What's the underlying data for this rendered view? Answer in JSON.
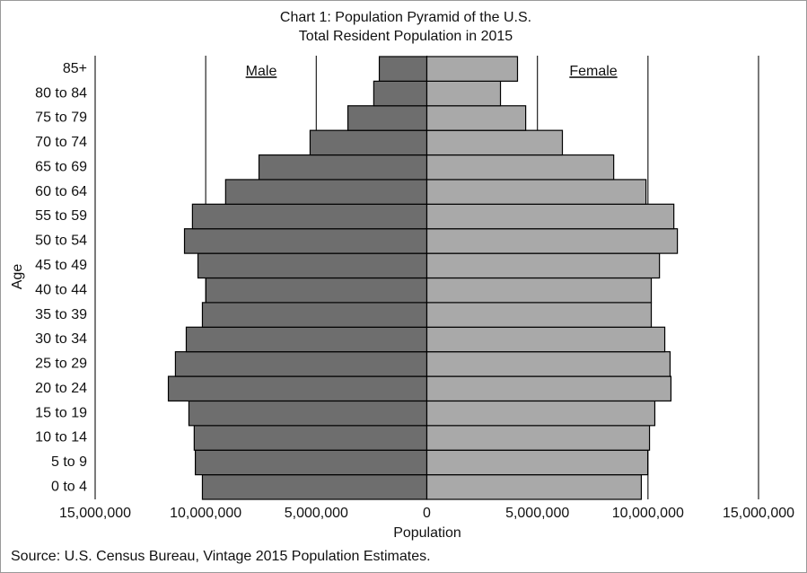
{
  "chart_data": {
    "type": "population_pyramid",
    "title": "Chart 1: Population Pyramid of the U.S.",
    "subtitle": "Total Resident Population in 2015",
    "x_label": "Population",
    "y_label": "Age",
    "source": "Source: U.S. Census Bureau, Vintage 2015 Population Estimates.",
    "categories": [
      "0 to 4",
      "5 to 9",
      "10 to 14",
      "15 to 19",
      "20 to 24",
      "25 to 29",
      "30 to 34",
      "35 to 39",
      "40 to 44",
      "45 to 49",
      "50 to 54",
      "55 to 59",
      "60 to 64",
      "65 to 69",
      "70 to 74",
      "75 to 79",
      "80 to 84",
      "85+"
    ],
    "series": [
      {
        "name": "Male",
        "color": "#6e6e6e",
        "values": [
          10150000,
          10470000,
          10520000,
          10760000,
          11690000,
          11370000,
          10880000,
          10150000,
          9990000,
          10350000,
          10960000,
          10600000,
          9100000,
          7590000,
          5280000,
          3570000,
          2400000,
          2150000
        ]
      },
      {
        "name": "Female",
        "color": "#a9a9a9",
        "values": [
          9700000,
          9990000,
          10070000,
          10310000,
          11040000,
          11000000,
          10760000,
          10150000,
          10150000,
          10520000,
          11330000,
          11170000,
          9910000,
          8450000,
          6130000,
          4470000,
          3330000,
          4100000
        ]
      }
    ],
    "xlim": [
      -15000000,
      15000000
    ],
    "xticks": [
      {
        "value": -15000000,
        "label": "15,000,000"
      },
      {
        "value": -10000000,
        "label": "10,000,000"
      },
      {
        "value": -5000000,
        "label": "5,000,000"
      },
      0,
      {
        "value": 5000000,
        "label": "5,000,000"
      },
      {
        "value": 10000000,
        "label": "10,000,000"
      },
      {
        "value": 15000000,
        "label": "15,000,000"
      }
    ],
    "grid": true
  }
}
